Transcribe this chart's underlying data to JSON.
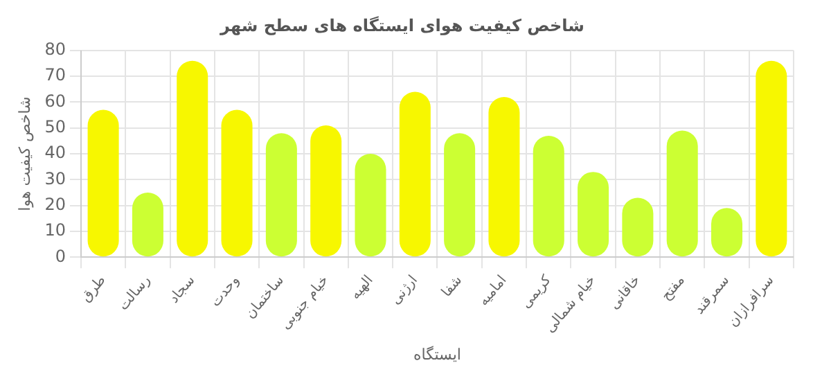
{
  "chart_data": {
    "type": "bar",
    "title": "شاخص کیفیت هوای ایستگاه های سطح شهر",
    "xlabel": "ایستگاه",
    "ylabel": "شاخص کیفیت هوا",
    "categories": [
      "طرق",
      "رسالت",
      "سجاد",
      "وحدت",
      "ساختمان",
      "خیام جنوبی",
      "الهیه",
      "ارژنی",
      "شفا",
      "امامیه",
      "کریمی",
      "خیام شمالی",
      "خاقانی",
      "مفتح",
      "سمرقند",
      "سرافرازان"
    ],
    "values": [
      57,
      25,
      76,
      57,
      48,
      51,
      40,
      64,
      48,
      62,
      47,
      33,
      23,
      49,
      19,
      76
    ],
    "colors": [
      "#f7f700",
      "#ccff33",
      "#f7f700",
      "#f7f700",
      "#ccff33",
      "#f7f700",
      "#ccff33",
      "#f7f700",
      "#ccff33",
      "#f7f700",
      "#ccff33",
      "#ccff33",
      "#ccff33",
      "#ccff33",
      "#ccff33",
      "#f7f700"
    ],
    "ylim": [
      0,
      80
    ],
    "yticks": [
      0,
      10,
      20,
      30,
      40,
      50,
      60,
      70,
      80
    ],
    "grid": true,
    "legend": false
  }
}
